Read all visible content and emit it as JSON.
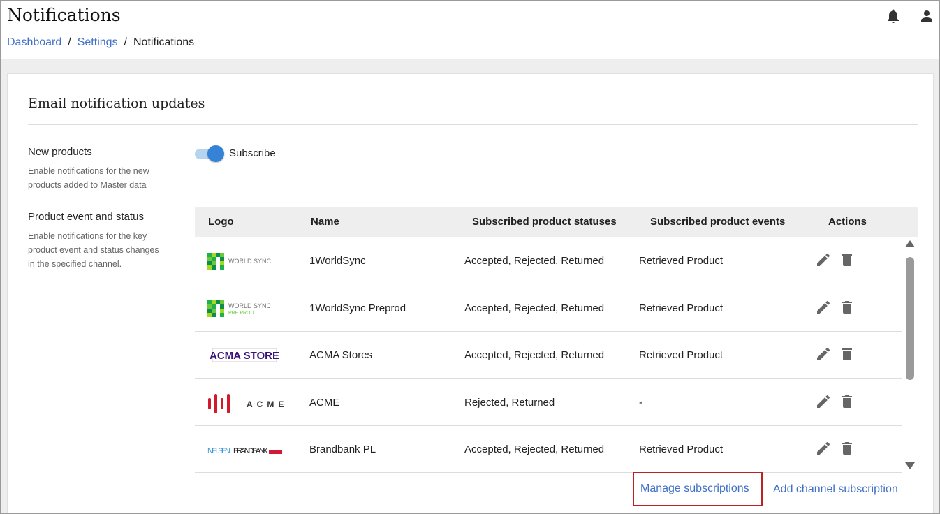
{
  "header": {
    "title": "Notifications",
    "breadcrumb": [
      "Dashboard",
      "Settings",
      "Notifications"
    ],
    "icons": [
      "bell-icon",
      "user-icon"
    ]
  },
  "card": {
    "title": "Email notification updates",
    "new_products": {
      "heading": "New products",
      "description": "Enable notifications for the new products added to Master data",
      "toggle_label": "Subscribe",
      "toggle_on": true
    },
    "product_event": {
      "heading": "Product event and status",
      "description": "Enable notifications for the key product event and status changes in the specified channel."
    }
  },
  "table": {
    "columns": [
      "Logo",
      "Name",
      "Subscribed product statuses",
      "Subscribed product events",
      "Actions"
    ],
    "rows": [
      {
        "logo": "1worldsync",
        "logo_text": "WORLD SYNC",
        "name": "1WorldSync",
        "statuses": "Accepted, Rejected, Returned",
        "events": "Retrieved Product"
      },
      {
        "logo": "1worldsync-preprod",
        "logo_text": "WORLD SYNC",
        "logo_sub": "PRE PROD",
        "name": "1WorldSync Preprod",
        "statuses": "Accepted, Rejected, Returned",
        "events": "Retrieved Product"
      },
      {
        "logo": "acma",
        "logo_text": "ACMA STORE",
        "name": "ACMA Stores",
        "statuses": "Accepted, Rejected, Returned",
        "events": "Retrieved Product"
      },
      {
        "logo": "acme",
        "logo_text": "ACME",
        "name": "ACME",
        "statuses": "Rejected, Returned",
        "events": "-"
      },
      {
        "logo": "brandbank",
        "logo_text": "NIELSEN BRANDBANK",
        "name": "Brandbank PL",
        "statuses": "Accepted, Rejected, Returned",
        "events": "Retrieved Product"
      }
    ]
  },
  "links": {
    "manage": "Manage subscriptions",
    "add": "Add channel subscription"
  },
  "colors": {
    "link": "#3f6fc6",
    "toggle": "#3582d6",
    "highlight": "#b22222"
  }
}
